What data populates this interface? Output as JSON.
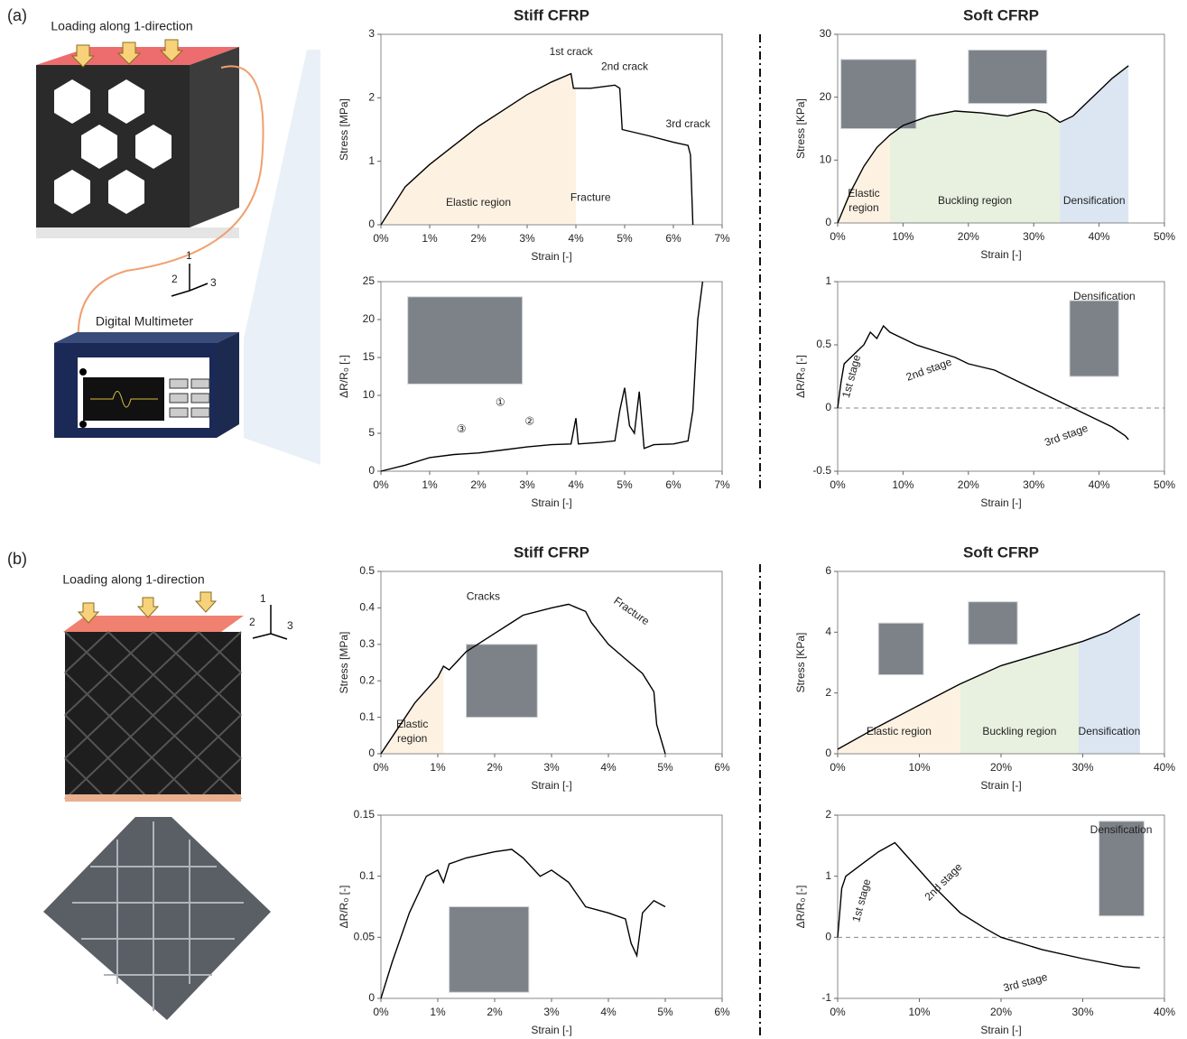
{
  "figure": {
    "panel_a": {
      "label": "(a)",
      "loading": "Loading along 1-direction",
      "meter": "Digital Multimeter",
      "axes": [
        "1",
        "2",
        "3"
      ]
    },
    "panel_b": {
      "label": "(b)",
      "loading": "Loading along 1-direction",
      "axes": [
        "1",
        "2",
        "3"
      ]
    }
  },
  "chart_data": [
    {
      "type": "line",
      "title": "Stiff CFRP",
      "x_label": "Strain [-]",
      "y_label": "Stress [MPa]",
      "xlim": [
        0,
        7
      ],
      "xticks": [
        {
          "value": 0,
          "label": "0%"
        },
        {
          "value": 1,
          "label": "1%"
        },
        {
          "value": 2,
          "label": "2%"
        },
        {
          "value": 3,
          "label": "3%"
        },
        {
          "value": 4,
          "label": "4%"
        },
        {
          "value": 5,
          "label": "5%"
        },
        {
          "value": 6,
          "label": "6%"
        },
        {
          "value": 7,
          "label": "7%"
        }
      ],
      "ylim": [
        0,
        3
      ],
      "yticks": [
        0,
        1,
        2,
        3
      ],
      "series": [
        {
          "color": "#000000",
          "x": [
            0,
            0.5,
            1,
            1.5,
            2,
            2.5,
            3,
            3.5,
            3.9,
            3.95,
            4.3,
            4.8,
            4.9,
            4.95,
            5.5,
            6,
            6.3,
            6.35,
            6.4
          ],
          "values": [
            0,
            0.6,
            0.95,
            1.25,
            1.55,
            1.8,
            2.05,
            2.25,
            2.38,
            2.15,
            2.15,
            2.2,
            2.15,
            1.5,
            1.4,
            1.3,
            1.25,
            1.1,
            0
          ]
        }
      ],
      "regions": [
        {
          "label": "Elastic region",
          "from": 0,
          "to": 4,
          "color": "#fdf2e2"
        }
      ],
      "annotation_color": "#4472c4",
      "annotations": [
        "1st crack",
        "2nd crack",
        "3rd crack",
        "Fracture"
      ]
    },
    {
      "type": "line",
      "x_label": "Strain [-]",
      "y_label": "ΔR/R₀ [-]",
      "xlim": [
        0,
        7
      ],
      "xticks": [
        {
          "value": 0,
          "label": "0%"
        },
        {
          "value": 1,
          "label": "1%"
        },
        {
          "value": 2,
          "label": "2%"
        },
        {
          "value": 3,
          "label": "3%"
        },
        {
          "value": 4,
          "label": "4%"
        },
        {
          "value": 5,
          "label": "5%"
        },
        {
          "value": 6,
          "label": "6%"
        },
        {
          "value": 7,
          "label": "7%"
        }
      ],
      "ylim": [
        0,
        25
      ],
      "yticks": [
        0,
        5,
        10,
        15,
        20,
        25
      ],
      "series": [
        {
          "color": "#000000",
          "x": [
            0,
            0.5,
            1,
            1.5,
            2,
            2.5,
            3,
            3.5,
            3.9,
            4,
            4.05,
            4.5,
            4.8,
            4.9,
            5,
            5.1,
            5.2,
            5.3,
            5.4,
            5.6,
            6,
            6.3,
            6.4,
            6.5,
            6.6
          ],
          "values": [
            0,
            0.8,
            1.8,
            2.2,
            2.4,
            2.8,
            3.2,
            3.5,
            3.6,
            7,
            3.6,
            3.8,
            4,
            8,
            11,
            6,
            5,
            10.5,
            3,
            3.5,
            3.6,
            4,
            8,
            20,
            25
          ]
        }
      ],
      "annotation_color": "#f0b323",
      "annotations": [
        "①",
        "②",
        "③"
      ]
    },
    {
      "type": "line",
      "title": "Soft CFRP",
      "x_label": "Strain [-]",
      "y_label": "Stress [KPa]",
      "xlim": [
        0,
        50
      ],
      "xticks": [
        {
          "value": 0,
          "label": "0%"
        },
        {
          "value": 10,
          "label": "10%"
        },
        {
          "value": 20,
          "label": "20%"
        },
        {
          "value": 30,
          "label": "30%"
        },
        {
          "value": 40,
          "label": "40%"
        },
        {
          "value": 50,
          "label": "50%"
        }
      ],
      "ylim": [
        0,
        30
      ],
      "yticks": [
        0,
        10,
        20,
        30
      ],
      "series": [
        {
          "color": "#000000",
          "x": [
            0,
            2,
            4,
            6,
            8,
            10,
            14,
            18,
            22,
            26,
            30,
            32,
            34,
            36,
            38,
            40,
            42,
            44.5
          ],
          "values": [
            0,
            5,
            9,
            12,
            14,
            15.5,
            17,
            17.8,
            17.5,
            17,
            18,
            17.5,
            16,
            17,
            19,
            21,
            23,
            25
          ]
        }
      ],
      "regions": [
        {
          "label": "Elastic region",
          "from": 0,
          "to": 8,
          "color": "#fdf2e2"
        },
        {
          "label": "Buckling region",
          "from": 8,
          "to": 34,
          "color": "#e8f1df"
        },
        {
          "label": "Densification",
          "from": 34,
          "to": 44.5,
          "color": "#dbe6f2"
        }
      ]
    },
    {
      "type": "line",
      "x_label": "Strain [-]",
      "y_label": "ΔR/R₀ [-]",
      "xlim": [
        0,
        50
      ],
      "xticks": [
        {
          "value": 0,
          "label": "0%"
        },
        {
          "value": 10,
          "label": "10%"
        },
        {
          "value": 20,
          "label": "20%"
        },
        {
          "value": 30,
          "label": "30%"
        },
        {
          "value": 40,
          "label": "40%"
        },
        {
          "value": 50,
          "label": "50%"
        }
      ],
      "ylim": [
        -0.5,
        1
      ],
      "yticks": [
        -0.5,
        0,
        0.5,
        1
      ],
      "zero_line": true,
      "series": [
        {
          "color": "#000000",
          "x": [
            0,
            0.5,
            1,
            2,
            3,
            4,
            5,
            6,
            7,
            8,
            10,
            12,
            15,
            18,
            20,
            24,
            28,
            30,
            32,
            34,
            36,
            38,
            40,
            42,
            44,
            44.5
          ],
          "values": [
            0,
            0.2,
            0.35,
            0.4,
            0.45,
            0.5,
            0.6,
            0.55,
            0.65,
            0.6,
            0.55,
            0.5,
            0.45,
            0.4,
            0.35,
            0.3,
            0.2,
            0.15,
            0.1,
            0.05,
            0,
            -0.05,
            -0.1,
            -0.15,
            -0.22,
            -0.25
          ]
        }
      ],
      "annotation_color": "#f0b323",
      "annotations": [
        "1st stage",
        "2nd stage",
        "3rd stage",
        "Densification"
      ]
    },
    {
      "type": "line",
      "title": "Stiff CFRP",
      "x_label": "Strain [-]",
      "y_label": "Stress [MPa]",
      "xlim": [
        0,
        6
      ],
      "xticks": [
        {
          "value": 0,
          "label": "0%"
        },
        {
          "value": 1,
          "label": "1%"
        },
        {
          "value": 2,
          "label": "2%"
        },
        {
          "value": 3,
          "label": "3%"
        },
        {
          "value": 4,
          "label": "4%"
        },
        {
          "value": 5,
          "label": "5%"
        },
        {
          "value": 6,
          "label": "6%"
        }
      ],
      "ylim": [
        0,
        0.5
      ],
      "yticks": [
        0,
        0.1,
        0.2,
        0.3,
        0.4,
        0.5
      ],
      "series": [
        {
          "color": "#000000",
          "x": [
            0,
            0.3,
            0.6,
            1,
            1.1,
            1.2,
            1.5,
            2,
            2.3,
            2.5,
            3,
            3.3,
            3.6,
            3.7,
            4,
            4.3,
            4.6,
            4.8,
            4.85,
            5
          ],
          "values": [
            0,
            0.07,
            0.14,
            0.21,
            0.24,
            0.23,
            0.28,
            0.33,
            0.36,
            0.38,
            0.4,
            0.41,
            0.39,
            0.36,
            0.3,
            0.26,
            0.22,
            0.17,
            0.08,
            0
          ]
        }
      ],
      "regions": [
        {
          "label": "Elastic region",
          "from": 0,
          "to": 1.1,
          "color": "#fdf2e2"
        }
      ],
      "annotation_color": "#4472c4",
      "annotations": [
        "Cracks",
        "Fracture"
      ]
    },
    {
      "type": "line",
      "x_label": "Strain [-]",
      "y_label": "ΔR/R₀ [-]",
      "xlim": [
        0,
        6
      ],
      "xticks": [
        {
          "value": 0,
          "label": "0%"
        },
        {
          "value": 1,
          "label": "1%"
        },
        {
          "value": 2,
          "label": "2%"
        },
        {
          "value": 3,
          "label": "3%"
        },
        {
          "value": 4,
          "label": "4%"
        },
        {
          "value": 5,
          "label": "5%"
        },
        {
          "value": 6,
          "label": "6%"
        }
      ],
      "ylim": [
        0,
        0.15
      ],
      "yticks": [
        0,
        0.05,
        0.1,
        0.15
      ],
      "series": [
        {
          "color": "#000000",
          "x": [
            0,
            0.2,
            0.5,
            0.8,
            1,
            1.1,
            1.2,
            1.5,
            2,
            2.3,
            2.5,
            2.8,
            3,
            3.3,
            3.6,
            4,
            4.3,
            4.4,
            4.5,
            4.6,
            4.8,
            5
          ],
          "values": [
            0,
            0.03,
            0.07,
            0.1,
            0.105,
            0.095,
            0.11,
            0.115,
            0.12,
            0.122,
            0.115,
            0.1,
            0.105,
            0.095,
            0.075,
            0.07,
            0.065,
            0.045,
            0.035,
            0.07,
            0.08,
            0.075
          ]
        }
      ]
    },
    {
      "type": "line",
      "title": "Soft CFRP",
      "x_label": "Strain [-]",
      "y_label": "Stress [KPa]",
      "xlim": [
        0,
        40
      ],
      "xticks": [
        {
          "value": 0,
          "label": "0%"
        },
        {
          "value": 10,
          "label": "10%"
        },
        {
          "value": 20,
          "label": "20%"
        },
        {
          "value": 30,
          "label": "30%"
        },
        {
          "value": 40,
          "label": "40%"
        }
      ],
      "ylim": [
        0,
        6
      ],
      "yticks": [
        0,
        2,
        4,
        6
      ],
      "series": [
        {
          "color": "#000000",
          "x": [
            0,
            5,
            10,
            15,
            20,
            25,
            30,
            33,
            37
          ],
          "values": [
            0.15,
            0.9,
            1.6,
            2.3,
            2.9,
            3.3,
            3.7,
            4,
            4.6
          ]
        }
      ],
      "regions": [
        {
          "label": "Elastic region",
          "from": 0,
          "to": 15,
          "color": "#fdf2e2"
        },
        {
          "label": "Buckling region",
          "from": 15,
          "to": 29.5,
          "color": "#e8f1df"
        },
        {
          "label": "Densification",
          "from": 29.5,
          "to": 37,
          "color": "#dbe6f2"
        }
      ]
    },
    {
      "type": "line",
      "x_label": "Strain [-]",
      "y_label": "ΔR/R₀ [-]",
      "xlim": [
        0,
        40
      ],
      "xticks": [
        {
          "value": 0,
          "label": "0%"
        },
        {
          "value": 10,
          "label": "10%"
        },
        {
          "value": 20,
          "label": "20%"
        },
        {
          "value": 30,
          "label": "30%"
        },
        {
          "value": 40,
          "label": "40%"
        }
      ],
      "ylim": [
        -1,
        2
      ],
      "yticks": [
        -1,
        0,
        1,
        2
      ],
      "zero_line": true,
      "series": [
        {
          "color": "#000000",
          "x": [
            0,
            0.5,
            1,
            3,
            5,
            7,
            8,
            10,
            12,
            15,
            18,
            20,
            25,
            30,
            35,
            37
          ],
          "values": [
            0,
            0.8,
            1,
            1.2,
            1.4,
            1.55,
            1.4,
            1.1,
            0.8,
            0.4,
            0.15,
            0,
            -0.2,
            -0.35,
            -0.48,
            -0.5
          ]
        }
      ],
      "annotation_color": "#f0b323",
      "annotations": [
        "1st stage",
        "2nd stage",
        "3rd stage",
        "Densification"
      ]
    }
  ]
}
